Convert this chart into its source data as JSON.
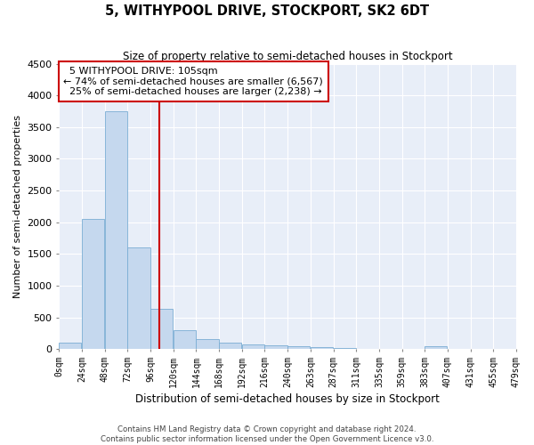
{
  "title": "5, WITHYPOOL DRIVE, STOCKPORT, SK2 6DT",
  "subtitle": "Size of property relative to semi-detached houses in Stockport",
  "xlabel": "Distribution of semi-detached houses by size in Stockport",
  "ylabel": "Number of semi-detached properties",
  "bar_color": "#c5d8ee",
  "bar_edge_color": "#7aadd4",
  "background_color": "#e8eef8",
  "grid_color": "#ffffff",
  "annotation_box_color": "#cc0000",
  "property_line_color": "#cc0000",
  "property_size": 105,
  "property_label": "5 WITHYPOOL DRIVE: 105sqm",
  "pct_smaller": 74,
  "count_smaller": 6567,
  "pct_larger": 25,
  "count_larger": 2238,
  "bin_width": 24,
  "bins": [
    0,
    24,
    48,
    72,
    96,
    120,
    144,
    168,
    192,
    216,
    240,
    264,
    288,
    312,
    336,
    360,
    384,
    408,
    432,
    456,
    480
  ],
  "bin_labels": [
    "0sqm",
    "24sqm",
    "48sqm",
    "72sqm",
    "96sqm",
    "120sqm",
    "144sqm",
    "168sqm",
    "192sqm",
    "216sqm",
    "240sqm",
    "263sqm",
    "287sqm",
    "311sqm",
    "335sqm",
    "359sqm",
    "383sqm",
    "407sqm",
    "431sqm",
    "455sqm",
    "479sqm"
  ],
  "counts": [
    100,
    2050,
    3750,
    1600,
    630,
    300,
    150,
    100,
    70,
    55,
    40,
    25,
    10,
    5,
    0,
    0,
    40,
    0,
    0,
    0,
    0
  ],
  "ylim": [
    0,
    4500
  ],
  "yticks": [
    0,
    500,
    1000,
    1500,
    2000,
    2500,
    3000,
    3500,
    4000,
    4500
  ],
  "footer_line1": "Contains HM Land Registry data © Crown copyright and database right 2024.",
  "footer_line2": "Contains public sector information licensed under the Open Government Licence v3.0."
}
